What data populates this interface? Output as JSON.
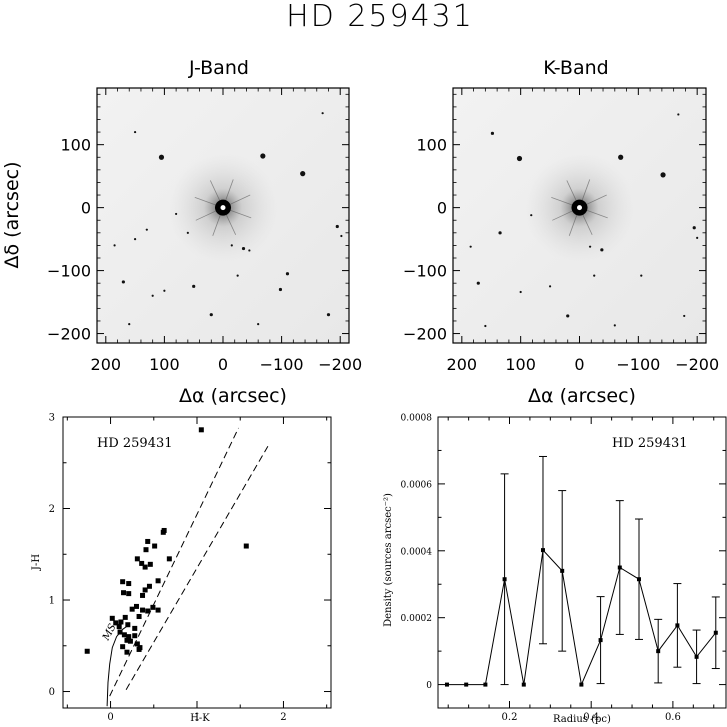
{
  "figure": {
    "title": "HD 259431"
  },
  "images": [
    {
      "title": "J-Band",
      "xlabel": "Δα (arcsec)",
      "ylabel": "Δδ (arcsec)",
      "xticks": [
        "200",
        "100",
        "0",
        "−100",
        "−200"
      ],
      "yticks": [
        "100",
        "0",
        "−100",
        "−200"
      ]
    },
    {
      "title": "K-Band",
      "xlabel": "Δα (arcsec)",
      "ylabel": "",
      "xticks": [
        "200",
        "100",
        "0",
        "−100",
        "−200"
      ],
      "yticks": [
        "100",
        "0",
        "−100",
        "−200"
      ]
    }
  ],
  "chart_data": [
    {
      "type": "image",
      "title": "J-Band",
      "xlabel": "Δα (arcsec)",
      "ylabel": "Δδ (arcsec)",
      "xlim": [
        215,
        -215
      ],
      "ylim": [
        -215,
        190
      ],
      "colormap": "inverted greyscale",
      "bright_source_at": [
        0,
        0
      ],
      "sources": [
        [
          -68,
          82
        ],
        [
          -136,
          54
        ],
        [
          105,
          80
        ],
        [
          -195,
          -30
        ],
        [
          -202,
          -45
        ],
        [
          -15,
          -60
        ],
        [
          -35,
          -65
        ],
        [
          -45,
          -68
        ],
        [
          -25,
          -108
        ],
        [
          -110,
          -105
        ],
        [
          130,
          -35
        ],
        [
          150,
          -50
        ],
        [
          50,
          -125
        ],
        [
          100,
          -132
        ],
        [
          120,
          -140
        ],
        [
          170,
          -118
        ],
        [
          160,
          -185
        ],
        [
          -60,
          -185
        ],
        [
          20,
          -170
        ],
        [
          185,
          -60
        ],
        [
          60,
          -40
        ],
        [
          -180,
          -170
        ],
        [
          150,
          120
        ],
        [
          -170,
          150
        ],
        [
          -98,
          -130
        ],
        [
          80,
          -10
        ]
      ]
    },
    {
      "type": "image",
      "title": "K-Band",
      "xlabel": "Δα (arcsec)",
      "ylabel": "",
      "xlim": [
        215,
        -215
      ],
      "ylim": [
        -215,
        190
      ],
      "colormap": "inverted greyscale",
      "bright_source_at": [
        0,
        0
      ],
      "sources": [
        [
          -70,
          80
        ],
        [
          -142,
          52
        ],
        [
          102,
          78
        ],
        [
          -195,
          -32
        ],
        [
          -200,
          -48
        ],
        [
          -18,
          -62
        ],
        [
          -38,
          -67
        ],
        [
          -105,
          -108
        ],
        [
          -25,
          -108
        ],
        [
          135,
          -40
        ],
        [
          50,
          -125
        ],
        [
          100,
          -134
        ],
        [
          172,
          -120
        ],
        [
          160,
          -188
        ],
        [
          -60,
          -187
        ],
        [
          20,
          -172
        ],
        [
          185,
          -62
        ],
        [
          -178,
          -172
        ],
        [
          148,
          118
        ],
        [
          -168,
          148
        ],
        [
          82,
          -12
        ]
      ]
    },
    {
      "type": "scatter",
      "title": "HD 259431",
      "xlabel": "H-K",
      "ylabel": "J-H",
      "xlim": [
        -0.55,
        2.55
      ],
      "ylim": [
        -0.18,
        3.0
      ],
      "xticks": [
        "0",
        "1",
        "2"
      ],
      "yticks": [
        "0",
        "1",
        "2",
        "3"
      ],
      "annotation": "MS",
      "points": [
        [
          1.05,
          2.86
        ],
        [
          1.57,
          1.59
        ],
        [
          0.62,
          1.76
        ],
        [
          0.61,
          1.74
        ],
        [
          0.68,
          1.45
        ],
        [
          0.43,
          1.64
        ],
        [
          0.41,
          1.55
        ],
        [
          0.51,
          1.59
        ],
        [
          0.31,
          1.45
        ],
        [
          0.36,
          1.4
        ],
        [
          0.46,
          1.39
        ],
        [
          0.4,
          1.36
        ],
        [
          0.14,
          1.2
        ],
        [
          0.21,
          1.18
        ],
        [
          0.15,
          1.08
        ],
        [
          0.21,
          1.07
        ],
        [
          0.4,
          1.11
        ],
        [
          0.37,
          1.05
        ],
        [
          0.45,
          1.15
        ],
        [
          0.55,
          1.21
        ],
        [
          0.3,
          0.93
        ],
        [
          0.25,
          0.9
        ],
        [
          0.37,
          0.89
        ],
        [
          0.43,
          0.88
        ],
        [
          0.49,
          0.92
        ],
        [
          0.55,
          0.89
        ],
        [
          0.02,
          0.8
        ],
        [
          0.06,
          0.75
        ],
        [
          0.12,
          0.76
        ],
        [
          0.17,
          0.81
        ],
        [
          0.1,
          0.71
        ],
        [
          0.2,
          0.73
        ],
        [
          0.28,
          0.69
        ],
        [
          0.33,
          0.82
        ],
        [
          0.11,
          0.65
        ],
        [
          0.16,
          0.62
        ],
        [
          0.21,
          0.6
        ],
        [
          0.19,
          0.56
        ],
        [
          0.23,
          0.55
        ],
        [
          0.28,
          0.61
        ],
        [
          0.31,
          0.52
        ],
        [
          0.34,
          0.48
        ],
        [
          0.14,
          0.49
        ],
        [
          0.19,
          0.43
        ],
        [
          0.33,
          0.46
        ],
        [
          -0.27,
          0.44
        ]
      ],
      "ms_curve": [
        [
          -0.04,
          -0.16
        ],
        [
          -0.03,
          0.1
        ],
        [
          -0.01,
          0.3
        ],
        [
          0.02,
          0.48
        ],
        [
          0.07,
          0.6
        ],
        [
          0.14,
          0.68
        ],
        [
          0.2,
          0.72
        ]
      ],
      "reddening_lines": [
        [
          [
            -0.01,
            -0.05
          ],
          [
            1.48,
            2.88
          ]
        ],
        [
          [
            0.18,
            0.02
          ],
          [
            1.82,
            2.68
          ]
        ]
      ]
    },
    {
      "type": "line",
      "title": "HD 259431",
      "xlabel": "Radius (pc)",
      "ylabel": "Density (sources arcsec⁻²)",
      "xlim": [
        0.025,
        0.73
      ],
      "ylim": [
        -7e-05,
        0.0008
      ],
      "xticks": [
        "0.2",
        "0.4",
        "0.6"
      ],
      "yticks": [
        "0",
        "0.0002",
        "0.0004",
        "0.0006",
        "0.0008"
      ],
      "series": [
        {
          "x": [
            0.047,
            0.094,
            0.141,
            0.188,
            0.235,
            0.282,
            0.329,
            0.376,
            0.423,
            0.47,
            0.517,
            0.564,
            0.611,
            0.658,
            0.705
          ],
          "y": [
            0,
            0,
            0,
            0.000315,
            0,
            0.000402,
            0.00034,
            0,
            0.000133,
            0.00035,
            0.000315,
            0.0001,
            0.000177,
            8.3e-05,
            0.000155
          ],
          "yerr": [
            0,
            0,
            0,
            0.000315,
            0,
            0.00028,
            0.00024,
            0,
            0.00013,
            0.0002,
            0.00018,
            9.5e-05,
            0.000125,
            8e-05,
            0.000107
          ]
        }
      ]
    }
  ]
}
